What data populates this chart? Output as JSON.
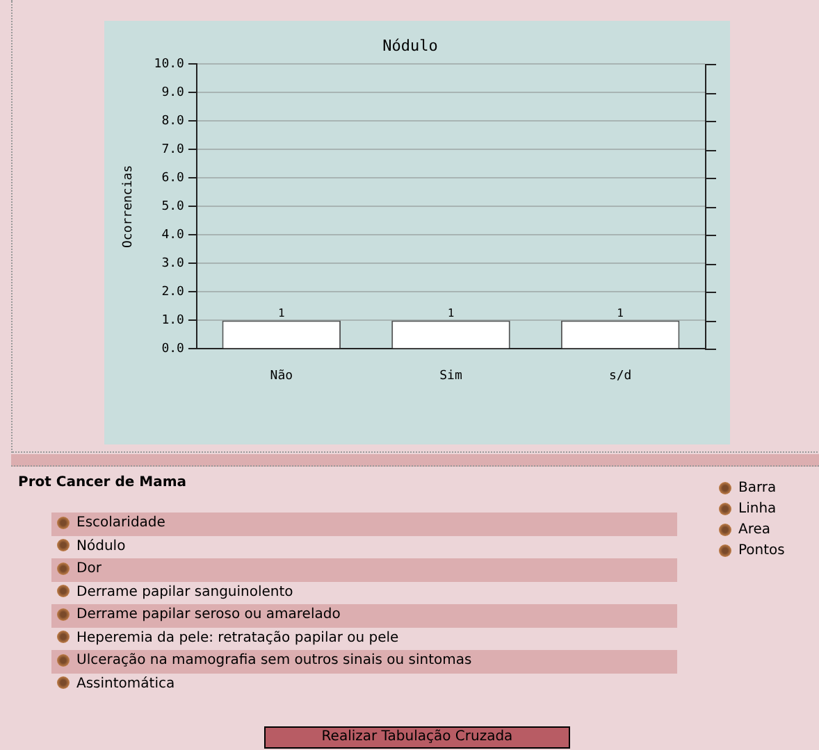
{
  "chart_data": {
    "type": "bar",
    "title": "Nódulo",
    "ylabel": "Ocorrencias",
    "categories": [
      "Não",
      "Sim",
      "s/d"
    ],
    "values": [
      1,
      1,
      1
    ],
    "color": "#ffffff",
    "data_labels": true,
    "ylim": [
      0,
      10
    ],
    "yticks": [
      {
        "value": 0,
        "label": "0.0"
      },
      {
        "value": 1,
        "label": "1.0"
      },
      {
        "value": 2,
        "label": "2.0"
      },
      {
        "value": 3,
        "label": "3.0"
      },
      {
        "value": 4,
        "label": "4.0"
      },
      {
        "value": 5,
        "label": "5.0"
      },
      {
        "value": 6,
        "label": "6.0"
      },
      {
        "value": 7,
        "label": "7.0"
      },
      {
        "value": 8,
        "label": "8.0"
      },
      {
        "value": 9,
        "label": "9.0"
      },
      {
        "value": 10,
        "label": "10.0"
      }
    ],
    "grid": "y",
    "legend": false,
    "annotations": [
      "Prot Cancer de Mama",
      "Escolaridade",
      "Nódulo",
      "Dor",
      "Derrame papilar sanguinolento",
      "Derrame papilar seroso ou amarelado",
      "Heperemia da pele: retratação papilar ou pele",
      "Ulceração na mamografia sem outros sinais ou sintomas",
      "Assintomática",
      "Barra",
      "Linha",
      "Area",
      "Pontos",
      "Realizar Tabulação Cruzada"
    ]
  }
}
